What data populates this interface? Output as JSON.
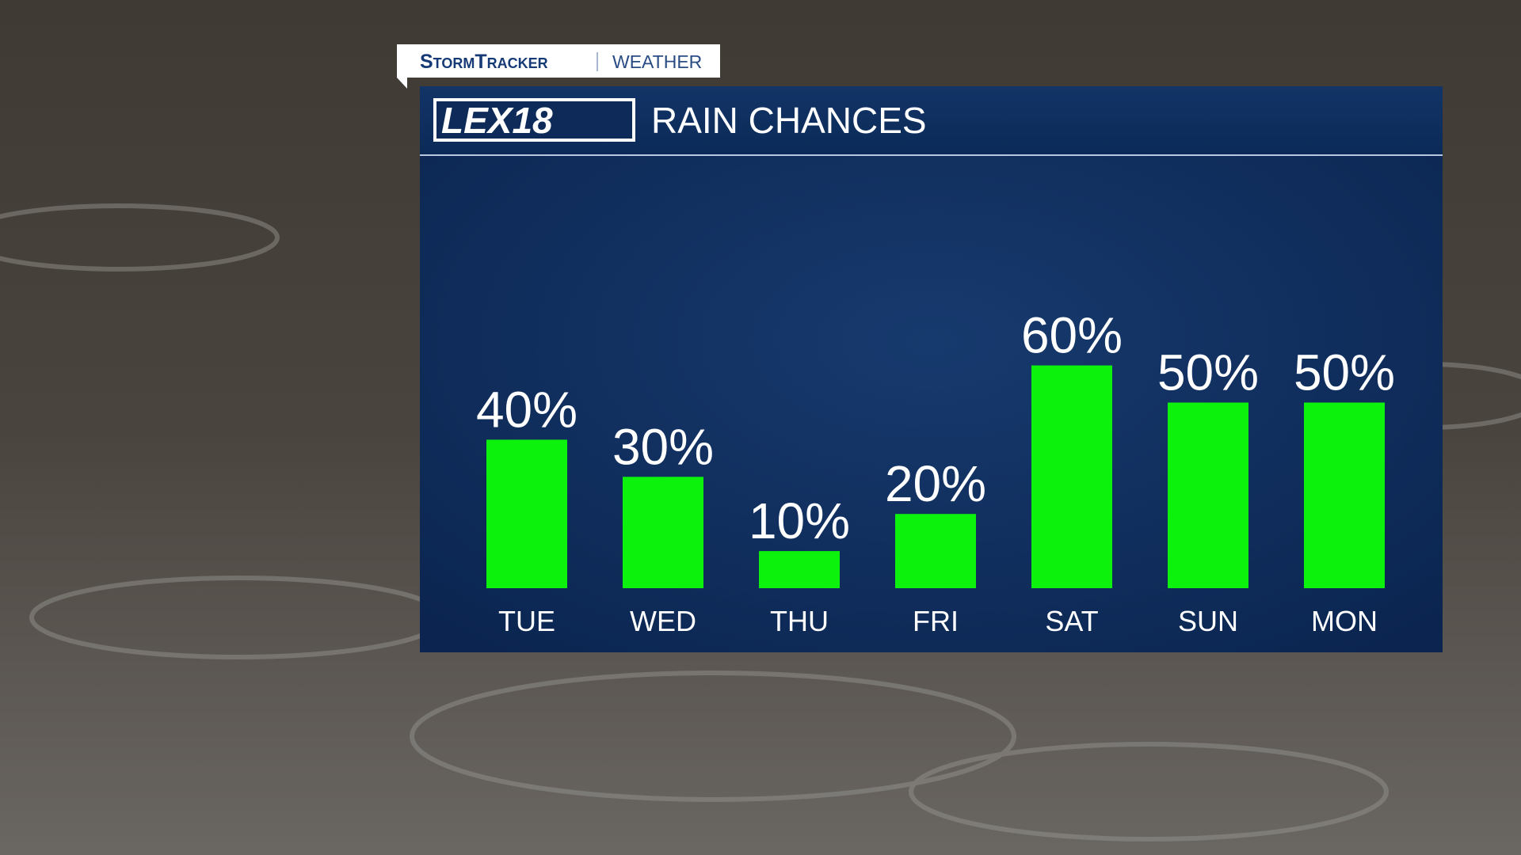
{
  "header": {
    "brand": "StormTracker",
    "section": "WEATHER",
    "logo": "LEX18"
  },
  "chart_data": {
    "type": "bar",
    "title": "RAIN CHANCES",
    "categories": [
      "TUE",
      "WED",
      "THU",
      "FRI",
      "SAT",
      "SUN",
      "MON"
    ],
    "values": [
      40,
      30,
      10,
      20,
      60,
      50,
      50
    ],
    "value_labels": [
      "40%",
      "30%",
      "10%",
      "20%",
      "60%",
      "50%",
      "50%"
    ],
    "color": "#0df20d"
  }
}
